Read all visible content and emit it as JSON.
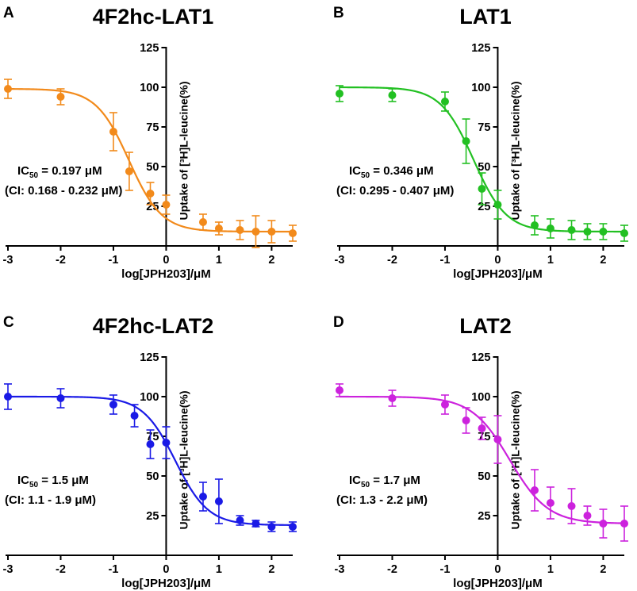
{
  "chart_data": [
    {
      "panel": "A",
      "title": "4F2hc-LAT1",
      "type": "scatter",
      "color": "#f28a1b",
      "xlabel": "log[JPH203]/μM",
      "ylabel": "Uptake of [³H]L-leucine(%)",
      "xlim": [
        -3,
        2.4
      ],
      "ylim": [
        0,
        125
      ],
      "xticks": [
        "-3",
        "-2",
        "-1",
        "0",
        "1",
        "2"
      ],
      "yticks": [
        "25",
        "50",
        "75",
        "100",
        "125"
      ],
      "ic50_label": "IC",
      "ic50_sub": "50",
      "ic50_value": " = 0.197 μM",
      "ci_text": "(CI: 0.168 - 0.232 μM)",
      "x": [
        -3,
        -2,
        -1,
        -0.7,
        -0.3,
        0,
        0.7,
        1,
        1.4,
        1.7,
        2,
        2.4
      ],
      "y": [
        99,
        94,
        72,
        47,
        33,
        26,
        15,
        11,
        10,
        9,
        9,
        8
      ],
      "err": [
        6,
        5,
        12,
        12,
        7,
        6,
        5,
        4,
        6,
        10,
        7,
        5
      ],
      "fit": {
        "top": 99,
        "bottom": 9,
        "logIC50": -0.706,
        "hill": 1.4
      }
    },
    {
      "panel": "B",
      "title": "LAT1",
      "type": "scatter",
      "color": "#22c022",
      "xlabel": "log[JPH203]/μM",
      "ylabel": "Uptake of [³H]L-leucine(%)",
      "xlim": [
        -3,
        2.4
      ],
      "ylim": [
        0,
        125
      ],
      "xticks": [
        "-3",
        "-2",
        "-1",
        "0",
        "1",
        "2"
      ],
      "yticks": [
        "25",
        "50",
        "75",
        "100",
        "125"
      ],
      "ic50_label": "IC",
      "ic50_sub": "50",
      "ic50_value": " = 0.346 μM",
      "ci_text": "(CI: 0.295 - 0.407 μM)",
      "x": [
        -3,
        -2,
        -1,
        -0.6,
        -0.3,
        0,
        0.7,
        1,
        1.4,
        1.7,
        2,
        2.4
      ],
      "y": [
        96,
        95,
        91,
        66,
        36,
        26,
        13,
        11,
        10,
        9,
        9,
        8
      ],
      "err": [
        5,
        4,
        6,
        14,
        10,
        9,
        6,
        6,
        6,
        5,
        5,
        5
      ],
      "fit": {
        "top": 100,
        "bottom": 9,
        "logIC50": -0.461,
        "hill": 1.4
      }
    },
    {
      "panel": "C",
      "title": "4F2hc-LAT2",
      "type": "scatter",
      "color": "#1a1ae6",
      "xlabel": "log[JPH203]/μM",
      "ylabel": "Uptake of [³H]L-leucine(%)",
      "xlim": [
        -3,
        2.4
      ],
      "ylim": [
        0,
        125
      ],
      "xticks": [
        "-3",
        "-2",
        "-1",
        "0",
        "1",
        "2"
      ],
      "yticks": [
        "25",
        "50",
        "75",
        "100",
        "125"
      ],
      "ic50_label": "IC",
      "ic50_sub": "50",
      "ic50_value": " = 1.5 μM",
      "ci_text": "(CI: 1.1 - 1.9 μM)",
      "x": [
        -3,
        -2,
        -1,
        -0.6,
        -0.3,
        0,
        0.7,
        1,
        1.4,
        1.7,
        2,
        2.4
      ],
      "y": [
        100,
        99,
        95,
        88,
        70,
        71,
        37,
        34,
        22,
        20,
        18,
        18
      ],
      "err": [
        8,
        6,
        6,
        7,
        9,
        10,
        9,
        14,
        3,
        2,
        3,
        3
      ],
      "fit": {
        "top": 100,
        "bottom": 19,
        "logIC50": 0.176,
        "hill": 1.4
      }
    },
    {
      "panel": "D",
      "title": "LAT2",
      "type": "scatter",
      "color": "#cc22dd",
      "xlabel": "log[JPH203]/μM",
      "ylabel": "Uptake of [³H]L-leucine(%)",
      "xlim": [
        -3,
        2.4
      ],
      "ylim": [
        0,
        125
      ],
      "xticks": [
        "-3",
        "-2",
        "-1",
        "0",
        "1",
        "2"
      ],
      "yticks": [
        "25",
        "50",
        "75",
        "100",
        "125"
      ],
      "ic50_label": "IC",
      "ic50_sub": "50",
      "ic50_value": " = 1.7 μM",
      "ci_text": "(CI: 1.3 - 2.2 μM)",
      "x": [
        -3,
        -2,
        -1,
        -0.6,
        -0.3,
        0,
        0.7,
        1,
        1.4,
        1.7,
        2,
        2.4
      ],
      "y": [
        104,
        99,
        95,
        85,
        80,
        73,
        41,
        33,
        31,
        25,
        20,
        20
      ],
      "err": [
        4,
        5,
        6,
        8,
        7,
        15,
        13,
        10,
        11,
        6,
        9,
        11
      ],
      "fit": {
        "top": 100,
        "bottom": 20,
        "logIC50": 0.23,
        "hill": 1.2
      }
    }
  ]
}
